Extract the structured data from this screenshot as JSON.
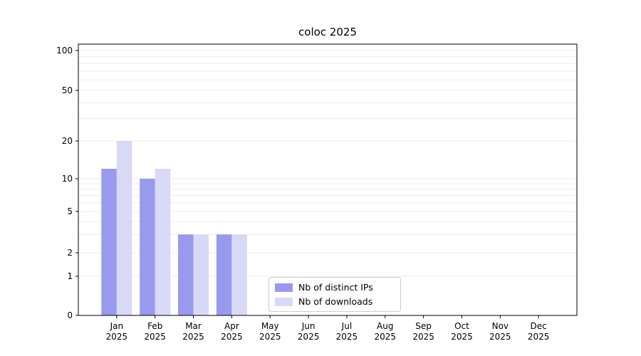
{
  "chart_data": {
    "type": "bar",
    "title": "coloc 2025",
    "categories": [
      "Jan 2025",
      "Feb 2025",
      "Mar 2025",
      "Apr 2025",
      "May 2025",
      "Jun 2025",
      "Jul 2025",
      "Aug 2025",
      "Sep 2025",
      "Oct 2025",
      "Nov 2025",
      "Dec 2025"
    ],
    "series": [
      {
        "name": "Nb of distinct IPs",
        "color": "#9999ee",
        "values": [
          12,
          10,
          3,
          3,
          0,
          0,
          0,
          0,
          0,
          0,
          0,
          0
        ]
      },
      {
        "name": "Nb of downloads",
        "color": "#d8d8f7",
        "values": [
          20,
          12,
          3,
          3,
          0,
          0,
          0,
          0,
          0,
          0,
          0,
          0
        ]
      }
    ],
    "yscale": "symlog",
    "ylim": [
      0,
      100
    ],
    "y_ticks": [
      0,
      1,
      2,
      5,
      10,
      20,
      50,
      100
    ],
    "grid_values": [
      1,
      2,
      3,
      4,
      5,
      6,
      7,
      8,
      9,
      10,
      20,
      30,
      40,
      50,
      60,
      70,
      80,
      90,
      100
    ],
    "grid": "horizontal-minor-and-major",
    "legend_position": "lower-center"
  }
}
